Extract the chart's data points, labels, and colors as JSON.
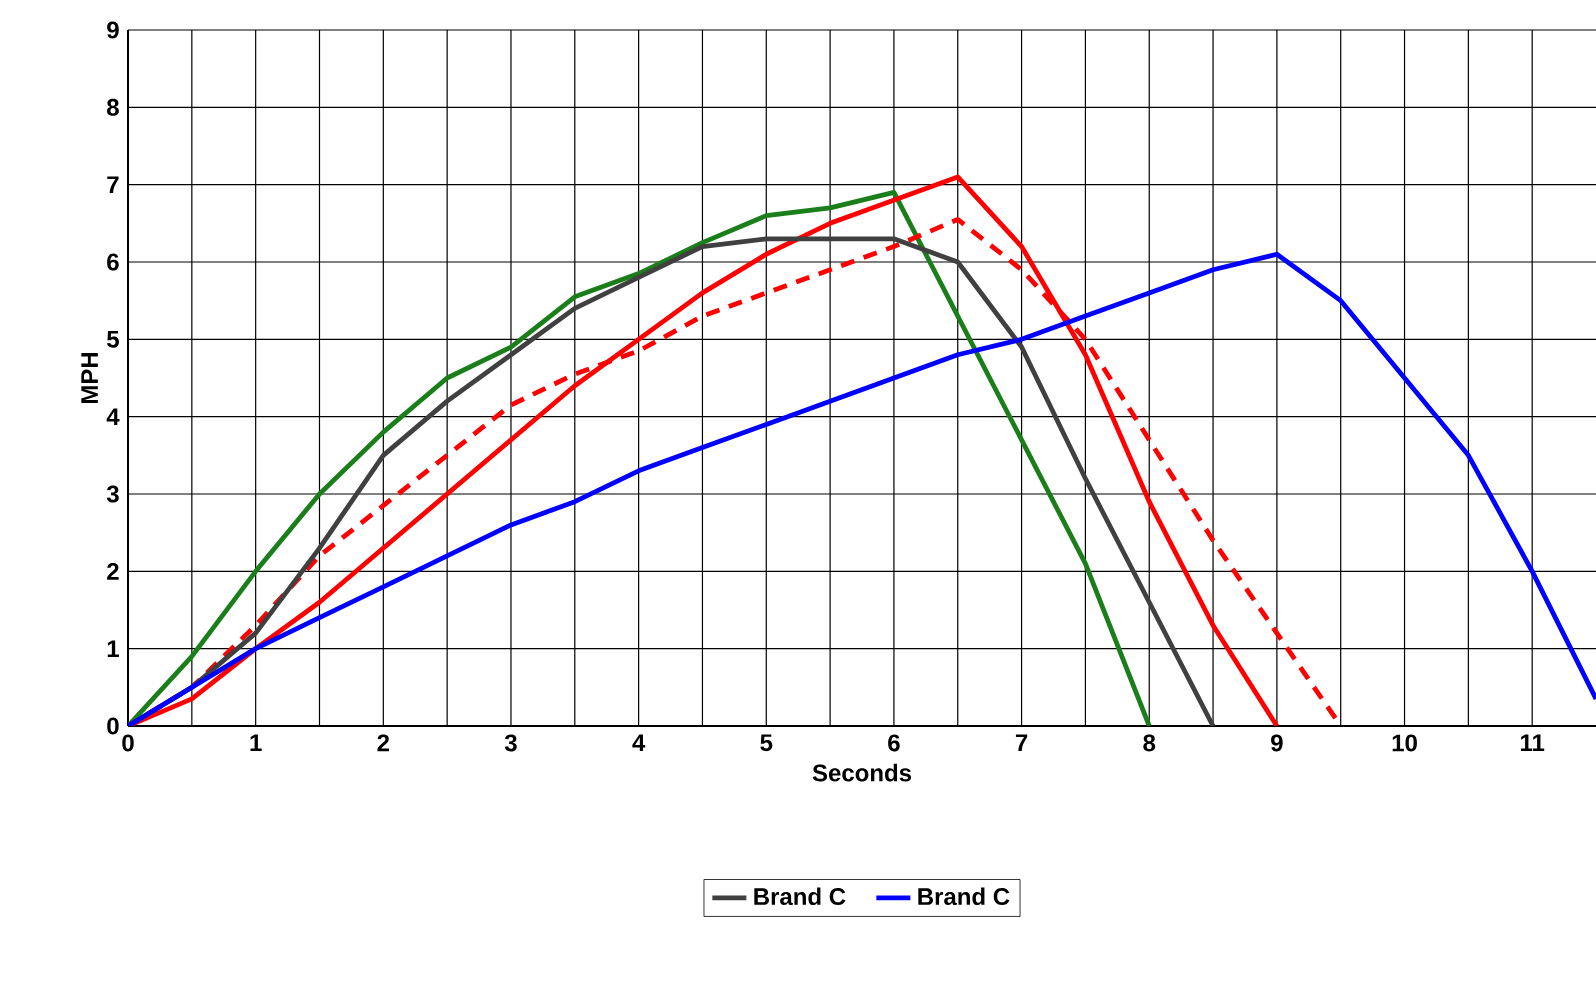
{
  "chart_data": {
    "type": "line",
    "xlabel": "Seconds",
    "ylabel": "MPH",
    "xlim": [
      0,
      11.5
    ],
    "ylim": [
      0,
      9
    ],
    "xticks": [
      0,
      {
        "value": 0.5,
        "label": null
      },
      1,
      {
        "value": 1.5,
        "label": null
      },
      2,
      {
        "value": 2.5,
        "label": null
      },
      3,
      {
        "value": 3.5,
        "label": null
      },
      4,
      {
        "value": 4.5,
        "label": null
      },
      5,
      {
        "value": 5.5,
        "label": null
      },
      6,
      {
        "value": 6.5,
        "label": null
      },
      7,
      {
        "value": 7.5,
        "label": null
      },
      8,
      {
        "value": 8.5,
        "label": null
      },
      9,
      {
        "value": 9.5,
        "label": null
      },
      10,
      {
        "value": 10.5,
        "label": null
      },
      11
    ],
    "yticks": [
      0,
      1,
      2,
      3,
      4,
      5,
      6,
      7,
      8,
      9
    ],
    "grid": true,
    "legend": "bottom",
    "marker": "none",
    "series": [
      {
        "color": "#1a7f1a",
        "line_style": "solid",
        "x": [
          0,
          0.5,
          1,
          1.5,
          2,
          2.5,
          3,
          3.5,
          4,
          4.5,
          5,
          5.5,
          6,
          6.5,
          7,
          7.5,
          8
        ],
        "values": [
          0,
          0.9,
          2.0,
          3.0,
          3.8,
          4.5,
          4.9,
          5.55,
          5.85,
          6.25,
          6.6,
          6.7,
          6.9,
          5.3,
          3.7,
          2.1,
          0
        ]
      },
      {
        "color": "#ff0000",
        "line_style": "solid",
        "x": [
          0,
          0.5,
          1,
          1.5,
          2,
          2.5,
          3,
          3.5,
          4,
          4.5,
          5,
          5.5,
          6,
          6.5,
          7,
          7.5,
          8,
          8.5,
          9
        ],
        "values": [
          0,
          0.35,
          1.0,
          1.6,
          2.3,
          3.0,
          3.7,
          4.4,
          5.0,
          5.6,
          6.1,
          6.5,
          6.8,
          7.1,
          6.2,
          4.8,
          2.9,
          1.3,
          0
        ]
      },
      {
        "color": "#ff0000",
        "line_style": "dashed",
        "x": [
          0,
          0.5,
          1,
          1.5,
          2,
          2.5,
          3,
          3.5,
          4,
          4.5,
          5,
          5.5,
          6,
          6.5,
          7,
          7.5,
          8,
          8.5,
          9,
          9.5
        ],
        "values": [
          0,
          0.5,
          1.3,
          2.2,
          2.85,
          3.5,
          4.15,
          4.55,
          4.85,
          5.3,
          5.6,
          5.9,
          6.2,
          6.55,
          5.9,
          5.0,
          3.7,
          2.4,
          1.2,
          0
        ]
      },
      {
        "name": "Brand C",
        "color": "#404040",
        "line_style": "solid",
        "x": [
          0,
          0.5,
          1,
          1.5,
          2,
          2.5,
          3,
          3.5,
          4,
          4.5,
          5,
          5.5,
          6,
          6.5,
          7,
          7.5,
          8,
          8.5
        ],
        "values": [
          0,
          0.5,
          1.2,
          2.3,
          3.5,
          4.2,
          4.8,
          5.4,
          5.8,
          6.2,
          6.3,
          6.3,
          6.3,
          6.0,
          4.9,
          3.2,
          1.6,
          0
        ]
      },
      {
        "name": "Brand C",
        "color": "#0000ff",
        "line_style": "solid",
        "x": [
          0,
          1,
          1.5,
          2,
          2.5,
          3,
          3.5,
          4,
          4.5,
          5,
          5.5,
          6,
          6.5,
          7,
          7.5,
          8,
          8.5,
          9,
          9.5,
          10,
          10.5,
          11,
          11.5
        ],
        "values": [
          0,
          1.0,
          1.4,
          1.8,
          2.2,
          2.6,
          2.9,
          3.3,
          3.6,
          3.9,
          4.2,
          4.5,
          4.8,
          5.0,
          5.3,
          5.6,
          5.9,
          6.1,
          5.5,
          4.5,
          3.5,
          2.0,
          0.35
        ]
      }
    ]
  }
}
